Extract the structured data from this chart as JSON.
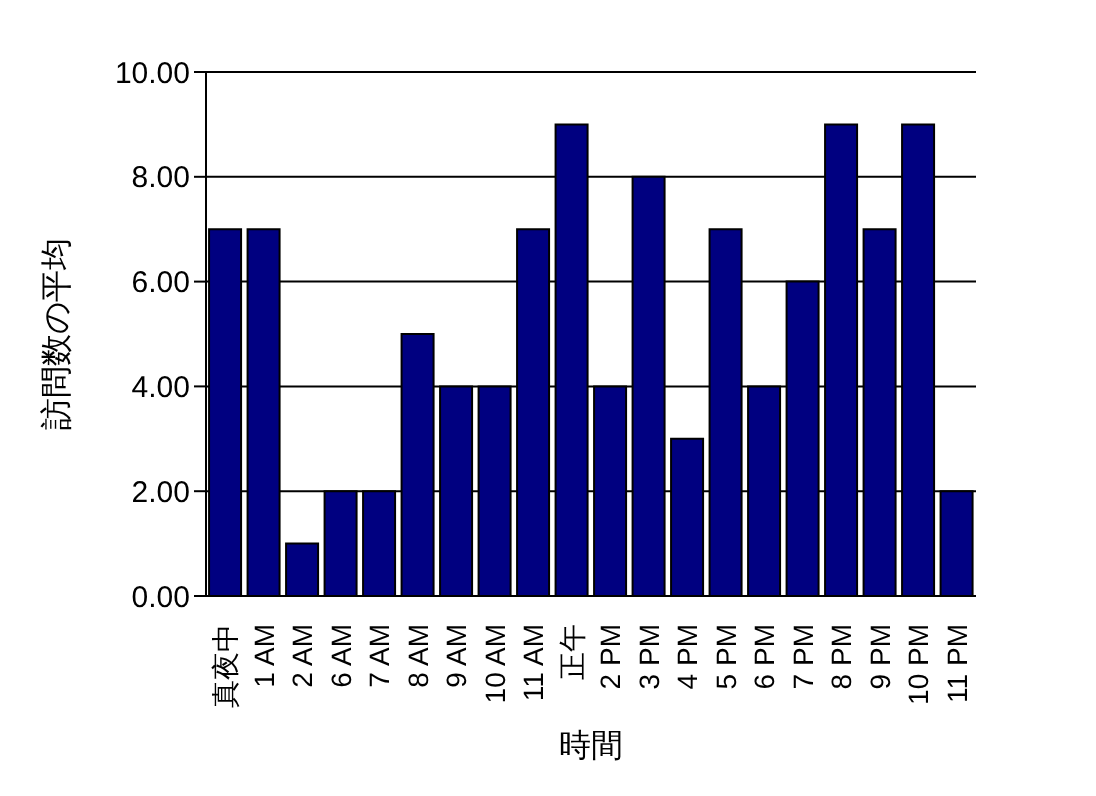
{
  "chart_data": {
    "type": "bar",
    "xlabel": "時間",
    "ylabel": "訪問数の平均",
    "categories": [
      "真夜中",
      "1 AM",
      "2 AM",
      "6 AM",
      "7 AM",
      "8 AM",
      "9 AM",
      "10 AM",
      "11 AM",
      "正午",
      "2 PM",
      "3 PM",
      "4 PM",
      "5 PM",
      "6 PM",
      "7 PM",
      "8 PM",
      "9 PM",
      "10 PM",
      "11 PM"
    ],
    "values": [
      7,
      7,
      1,
      2,
      2,
      5,
      4,
      4,
      7,
      9,
      4,
      8,
      3,
      7,
      4,
      6,
      9,
      7,
      9,
      2
    ],
    "color": "#000080",
    "ylim": [
      0,
      10
    ],
    "yticks": [
      {
        "value": 0,
        "label": "0.00"
      },
      {
        "value": 2,
        "label": "2.00"
      },
      {
        "value": 4,
        "label": "4.00"
      },
      {
        "value": 6,
        "label": "6.00"
      },
      {
        "value": 8,
        "label": "8.00"
      },
      {
        "value": 10,
        "label": "10.00"
      }
    ],
    "grid": "y",
    "legend": false
  }
}
